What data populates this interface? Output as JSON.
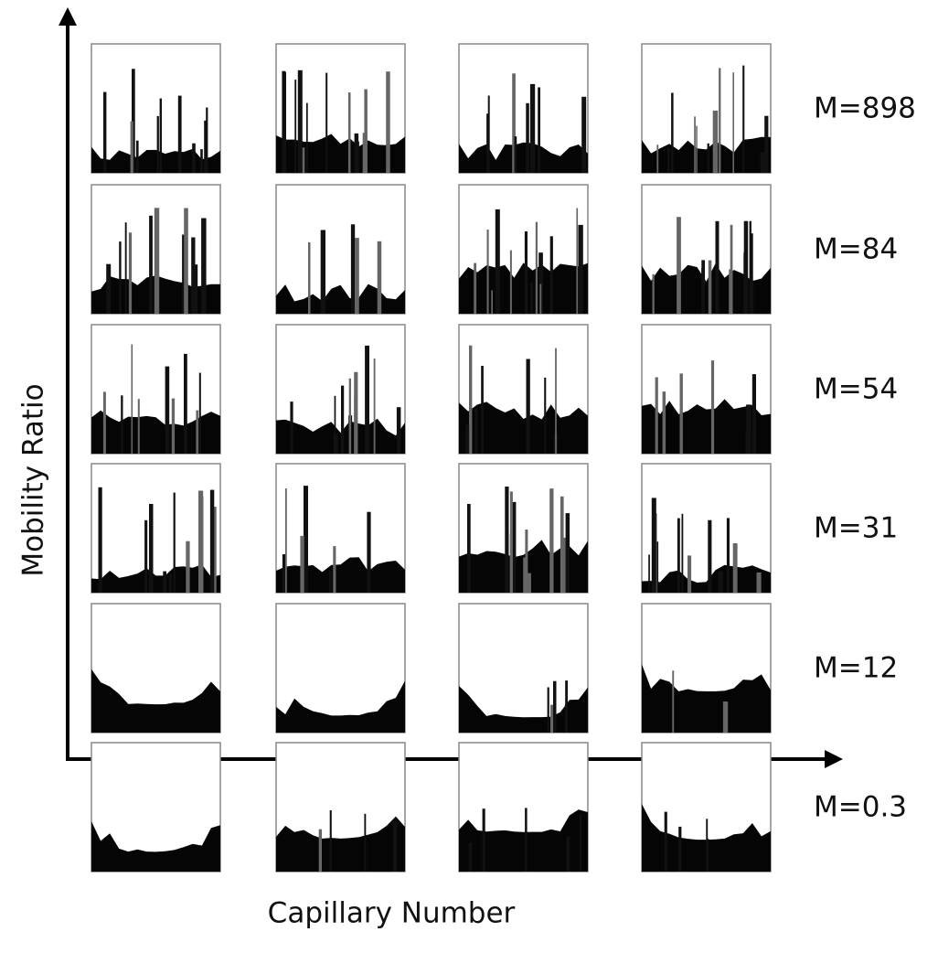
{
  "axes": {
    "x_label": "Capillary Number",
    "y_label": "Mobility Ratio"
  },
  "rows": [
    {
      "label": "M=898"
    },
    {
      "label": "M=84"
    },
    {
      "label": "M=54"
    },
    {
      "label": "M=31"
    },
    {
      "label": "M=12"
    },
    {
      "label": "M=0.3"
    }
  ]
}
